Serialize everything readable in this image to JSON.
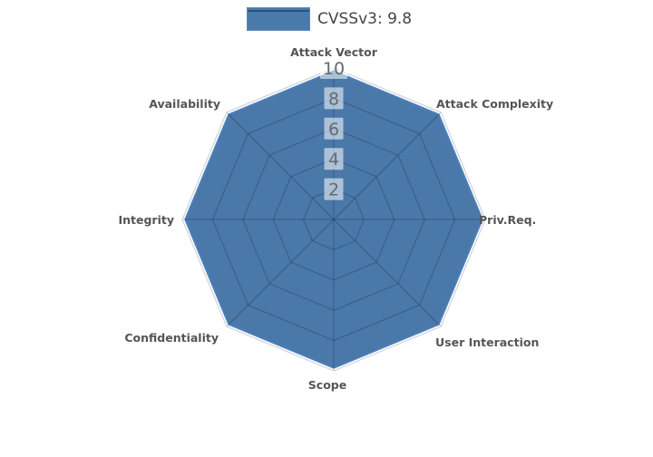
{
  "chart_data": {
    "type": "radar",
    "title": "",
    "categories": [
      "Attack Vector",
      "Attack Complexity",
      "Priv.Req.",
      "User Interaction",
      "Scope",
      "Confidentiality",
      "Integrity",
      "Availability"
    ],
    "series": [
      {
        "name": "CVSSv3: 9.8",
        "values": [
          9.8,
          9.8,
          9.8,
          9.8,
          9.8,
          9.8,
          9.8,
          9.8
        ]
      }
    ],
    "radial_ticks": [
      2,
      4,
      6,
      8,
      10
    ],
    "radial_range": [
      0,
      10
    ],
    "grid": true,
    "legend_position": "top-center",
    "colors": {
      "fill": "#4a78a8",
      "line": "#4a7fba",
      "grid_inside_fill": "rgba(10,30,60,0.30)",
      "grid_outside_fill": "#c6ccd4",
      "tick_text": "#626a73",
      "tick_box": "rgba(255,255,255,0.55)",
      "axis_label": "#555555",
      "legend_text": "#444444",
      "legend_swatch": "#4a79ab",
      "legend_swatch_line": "#2c5280"
    }
  }
}
